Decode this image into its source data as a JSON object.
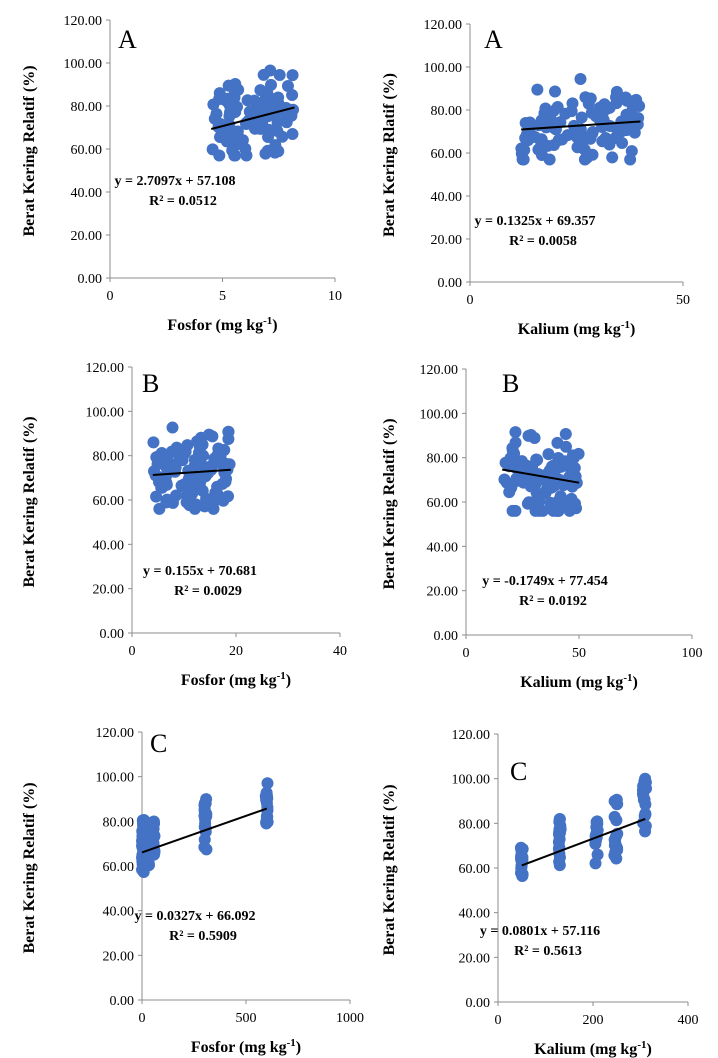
{
  "colors": {
    "point": "#4472C4",
    "trend": "#000000",
    "axis": "#8c8c8c"
  },
  "chart_data": [
    {
      "type": "scatter",
      "panel_label": "A",
      "xlabel": "Fosfor (mg kg",
      "xlabel_sup": "-1",
      "xlabel_close": ")",
      "ylabel": "Berat Kering Relatif (%)",
      "xlim": [
        0,
        10
      ],
      "ylim": [
        0,
        120
      ],
      "xticks": [
        "0",
        "5",
        "10"
      ],
      "xtick_values": [
        0,
        5,
        10
      ],
      "yticks": [
        "0.00",
        "20.00",
        "40.00",
        "60.00",
        "80.00",
        "100.00",
        "120.00"
      ],
      "trend": {
        "slope": 2.7097,
        "intercept": 57.108,
        "x_range": [
          4.5,
          8.2
        ]
      },
      "equation": "y = 2.7097x + 57.108",
      "r2": "R² = 0.0512",
      "points": {
        "x_range": [
          4.5,
          8.2
        ],
        "y_range": [
          57,
          100
        ],
        "n": 110
      }
    },
    {
      "type": "scatter",
      "panel_label": "A",
      "xlabel": "Kalium  (mg kg",
      "xlabel_sup": "-1",
      "xlabel_close": ")",
      "ylabel": "Berat Kering Rlatif (%)",
      "xlim": [
        0,
        50
      ],
      "ylim": [
        0,
        120
      ],
      "xticks": [
        "0",
        "50"
      ],
      "xtick_values": [
        0,
        50
      ],
      "yticks": [
        "0.00",
        "20.00",
        "40.00",
        "60.00",
        "80.00",
        "100.00",
        "120.00"
      ],
      "trend": {
        "slope": 0.1325,
        "intercept": 69.357,
        "x_range": [
          12,
          40
        ]
      },
      "equation": "y = 0.1325x + 69.357",
      "r2": "R² = 0.0058",
      "points": {
        "x_range": [
          12,
          40
        ],
        "y_range": [
          57,
          100
        ],
        "n": 110
      }
    },
    {
      "type": "scatter",
      "panel_label": "B",
      "xlabel": "Fosfor (mg kg",
      "xlabel_sup": "-1",
      "xlabel_close": ")",
      "ylabel": "Berat Kering Relatif (%)",
      "xlim": [
        0,
        40
      ],
      "ylim": [
        0,
        120
      ],
      "xticks": [
        "0",
        "20",
        "40"
      ],
      "xtick_values": [
        0,
        20,
        40
      ],
      "yticks": [
        "0.00",
        "20.00",
        "40.00",
        "60.00",
        "80.00",
        "100.00",
        "120.00"
      ],
      "trend": {
        "slope": 0.155,
        "intercept": 70.681,
        "x_range": [
          4,
          19
        ]
      },
      "equation": "y = 0.155x + 70.681",
      "r2": "R² = 0.0029",
      "points": {
        "x_range": [
          4,
          19
        ],
        "y_range": [
          56,
          100
        ],
        "n": 110
      }
    },
    {
      "type": "scatter",
      "panel_label": "B",
      "xlabel": "Kalium (mg kg",
      "xlabel_sup": "-1",
      "xlabel_close": ")",
      "ylabel": "Berat Kering Relatif (%)",
      "xlim": [
        0,
        100
      ],
      "ylim": [
        0,
        120
      ],
      "xticks": [
        "0",
        "50",
        "100"
      ],
      "xtick_values": [
        0,
        50,
        100
      ],
      "yticks": [
        "0.00",
        "20.00",
        "40.00",
        "60.00",
        "80.00",
        "100.00",
        "120.00"
      ],
      "trend": {
        "slope": -0.1749,
        "intercept": 77.454,
        "x_range": [
          16,
          50
        ]
      },
      "equation": "y = -0.1749x + 77.454",
      "r2": "R² = 0.0192",
      "points": {
        "x_range": [
          16,
          50
        ],
        "y_range": [
          56,
          100
        ],
        "n": 110
      }
    },
    {
      "type": "scatter",
      "panel_label": "C",
      "xlabel": "Fosfor (mg kg",
      "xlabel_sup": "-1",
      "xlabel_close": ")",
      "ylabel": "Berat Kering Relatif (%)",
      "xlim": [
        0,
        1000
      ],
      "ylim": [
        0,
        120
      ],
      "xticks": [
        "0",
        "500",
        "1000"
      ],
      "xtick_values": [
        0,
        500,
        1000
      ],
      "yticks": [
        "0.00",
        "20.00",
        "40.00",
        "60.00",
        "80.00",
        "100.00",
        "120.00"
      ],
      "trend": {
        "slope": 0.0327,
        "intercept": 66.092,
        "x_range": [
          0,
          600
        ]
      },
      "equation": "y = 0.0327x + 66.092",
      "r2": "R² = 0.5909",
      "points": {
        "clusters": [
          {
            "x": [
              0,
              10
            ],
            "y_range": [
              56,
              82
            ],
            "n": 40
          },
          {
            "x": [
              20,
              45
            ],
            "y_range": [
              60,
              82
            ],
            "n": 30
          },
          {
            "x": [
              55,
              60
            ],
            "y_range": [
              62,
              80
            ],
            "n": 15
          },
          {
            "x": [
              300,
              310
            ],
            "y_range": [
              65,
              91
            ],
            "n": 20
          },
          {
            "x": [
              595,
              605
            ],
            "y_range": [
              77,
              100
            ],
            "n": 20
          }
        ]
      }
    },
    {
      "type": "scatter",
      "panel_label": "C",
      "xlabel": "Kalium (mg kg",
      "xlabel_sup": "-1",
      "xlabel_close": ")",
      "ylabel": "Berat Kering Relatif (%)",
      "xlim": [
        0,
        400
      ],
      "ylim": [
        0,
        120
      ],
      "xticks": [
        "0",
        "200",
        "400"
      ],
      "xtick_values": [
        0,
        200,
        400
      ],
      "yticks": [
        "0.00",
        "20.00",
        "40.00",
        "60.00",
        "80.00",
        "100.00",
        "120.00"
      ],
      "trend": {
        "slope": 0.0801,
        "intercept": 57.116,
        "x_range": [
          50,
          310
        ]
      },
      "equation": "y = 0.0801x + 57.116",
      "r2": "R² = 0.5613",
      "points": {
        "clusters": [
          {
            "x": [
              48,
              52
            ],
            "y_range": [
              56,
              71
            ],
            "n": 20
          },
          {
            "x": [
              128,
              132
            ],
            "y_range": [
              61,
              82
            ],
            "n": 20
          },
          {
            "x": [
              205,
              210
            ],
            "y_range": [
              62,
              81
            ],
            "n": 20
          },
          {
            "x": [
              245,
              252
            ],
            "y_range": [
              64,
              91
            ],
            "n": 20
          },
          {
            "x": [
              305,
              312
            ],
            "y_range": [
              75,
              100
            ],
            "n": 20
          }
        ]
      }
    }
  ]
}
